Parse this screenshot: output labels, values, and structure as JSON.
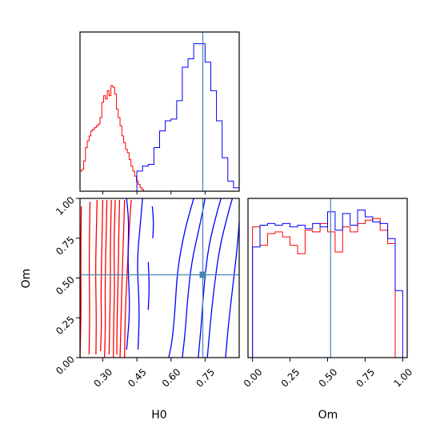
{
  "chart_data": {
    "type": "corner",
    "parameters": [
      "H0",
      "Om"
    ],
    "truth": {
      "H0": 0.74,
      "Om": 0.52
    },
    "colors": {
      "red": "#ff0000",
      "blue": "#0000ff",
      "truth": "#4682b4"
    },
    "xlabel_h0": "H0",
    "xlabel_om": "Om",
    "ylabel_om": "Om",
    "h0_range": [
      0.2,
      0.9
    ],
    "om_range": [
      0.0,
      1.0
    ],
    "h0_ticks": [
      {
        "v": 0.3,
        "label": "0.30"
      },
      {
        "v": 0.45,
        "label": "0.45"
      },
      {
        "v": 0.6,
        "label": "0.60"
      },
      {
        "v": 0.75,
        "label": "0.75"
      }
    ],
    "om_ticks": [
      {
        "v": 0.0,
        "label": "0.00"
      },
      {
        "v": 0.25,
        "label": "0.25"
      },
      {
        "v": 0.5,
        "label": "0.50"
      },
      {
        "v": 0.75,
        "label": "0.75"
      },
      {
        "v": 1.0,
        "label": "1.00"
      }
    ],
    "hist_h0_red": {
      "edges": [
        0.2,
        0.208,
        0.216,
        0.224,
        0.232,
        0.24,
        0.248,
        0.256,
        0.264,
        0.272,
        0.28,
        0.288,
        0.296,
        0.304,
        0.312,
        0.32,
        0.328,
        0.336,
        0.344,
        0.352,
        0.36,
        0.368,
        0.376,
        0.384,
        0.392,
        0.4,
        0.408,
        0.416,
        0.424,
        0.432,
        0.44,
        0.448,
        0.456,
        0.464,
        0.472,
        0.48,
        0.488
      ],
      "counts": [
        0.12,
        0.13,
        0.18,
        0.26,
        0.3,
        0.33,
        0.36,
        0.37,
        0.38,
        0.39,
        0.4,
        0.44,
        0.53,
        0.57,
        0.55,
        0.6,
        0.57,
        0.63,
        0.62,
        0.58,
        0.49,
        0.44,
        0.39,
        0.33,
        0.29,
        0.25,
        0.23,
        0.19,
        0.15,
        0.12,
        0.09,
        0.06,
        0.04,
        0.02,
        0.01,
        0.0
      ]
    },
    "hist_h0_blue": {
      "edges": [
        0.45,
        0.475,
        0.5,
        0.525,
        0.55,
        0.575,
        0.6,
        0.625,
        0.65,
        0.675,
        0.7,
        0.725,
        0.75,
        0.775,
        0.8,
        0.825,
        0.85,
        0.875,
        0.9
      ],
      "counts": [
        0.12,
        0.15,
        0.16,
        0.26,
        0.36,
        0.42,
        0.43,
        0.54,
        0.74,
        0.79,
        0.88,
        0.88,
        0.77,
        0.6,
        0.42,
        0.2,
        0.06,
        0.02
      ]
    },
    "hist_om_red": {
      "edges": [
        0.0,
        0.05,
        0.1,
        0.15,
        0.2,
        0.25,
        0.3,
        0.35,
        0.4,
        0.45,
        0.5,
        0.55,
        0.6,
        0.65,
        0.7,
        0.75,
        0.8,
        0.85,
        0.9,
        0.95,
        1.0
      ],
      "counts": [
        0.78,
        0.67,
        0.74,
        0.75,
        0.72,
        0.67,
        0.62,
        0.76,
        0.75,
        0.8,
        0.75,
        0.63,
        0.78,
        0.75,
        0.8,
        0.82,
        0.83,
        0.76,
        0.68,
        0.0
      ]
    },
    "hist_om_blue": {
      "edges": [
        0.0,
        0.05,
        0.1,
        0.15,
        0.2,
        0.25,
        0.3,
        0.35,
        0.4,
        0.45,
        0.5,
        0.55,
        0.6,
        0.65,
        0.7,
        0.75,
        0.8,
        0.85,
        0.9,
        0.95,
        1.0
      ],
      "counts": [
        0.66,
        0.79,
        0.8,
        0.79,
        0.8,
        0.78,
        0.79,
        0.77,
        0.8,
        0.78,
        0.87,
        0.76,
        0.86,
        0.79,
        0.88,
        0.84,
        0.81,
        0.8,
        0.71,
        0.4
      ]
    },
    "contours_red": [
      [
        [
          0.2,
          0.0
        ],
        [
          0.205,
          0.3
        ],
        [
          0.203,
          0.6
        ],
        [
          0.206,
          0.95
        ]
      ],
      [
        [
          0.24,
          0.02
        ],
        [
          0.243,
          0.3
        ],
        [
          0.24,
          0.6
        ],
        [
          0.244,
          0.98
        ]
      ],
      [
        [
          0.27,
          0.02
        ],
        [
          0.272,
          0.25
        ],
        [
          0.268,
          0.55
        ],
        [
          0.273,
          0.85
        ],
        [
          0.275,
          0.99
        ]
      ],
      [
        [
          0.29,
          0.04
        ],
        [
          0.295,
          0.2
        ],
        [
          0.292,
          0.4
        ],
        [
          0.297,
          0.75
        ],
        [
          0.3,
          0.99
        ]
      ],
      [
        [
          0.308,
          0.0
        ],
        [
          0.312,
          0.2
        ],
        [
          0.31,
          0.45
        ],
        [
          0.315,
          0.75
        ],
        [
          0.318,
          0.99
        ]
      ],
      [
        [
          0.328,
          0.02
        ],
        [
          0.33,
          0.2
        ],
        [
          0.334,
          0.45
        ],
        [
          0.333,
          0.7
        ],
        [
          0.338,
          0.99
        ]
      ],
      [
        [
          0.347,
          0.0
        ],
        [
          0.348,
          0.2
        ],
        [
          0.352,
          0.45
        ],
        [
          0.349,
          0.7
        ],
        [
          0.355,
          0.99
        ]
      ],
      [
        [
          0.362,
          0.02
        ],
        [
          0.363,
          0.25
        ],
        [
          0.368,
          0.5
        ],
        [
          0.37,
          0.75
        ],
        [
          0.374,
          0.99
        ]
      ],
      [
        [
          0.376,
          0.0
        ],
        [
          0.38,
          0.2
        ],
        [
          0.384,
          0.45
        ],
        [
          0.39,
          0.7
        ],
        [
          0.396,
          0.99
        ]
      ],
      [
        [
          0.396,
          0.0
        ],
        [
          0.398,
          0.25
        ],
        [
          0.408,
          0.55
        ],
        [
          0.418,
          0.85
        ],
        [
          0.425,
          0.99
        ]
      ]
    ],
    "contours_blue": [
      [
        [
          0.59,
          0.0
        ],
        [
          0.605,
          0.1
        ],
        [
          0.618,
          0.3
        ],
        [
          0.628,
          0.55
        ],
        [
          0.66,
          0.8
        ],
        [
          0.7,
          1.0
        ]
      ],
      [
        [
          0.65,
          0.0
        ],
        [
          0.662,
          0.15
        ],
        [
          0.672,
          0.35
        ],
        [
          0.69,
          0.6
        ],
        [
          0.73,
          0.85
        ],
        [
          0.75,
          1.0
        ]
      ],
      [
        [
          0.72,
          0.0
        ],
        [
          0.733,
          0.2
        ],
        [
          0.745,
          0.45
        ],
        [
          0.765,
          0.7
        ],
        [
          0.8,
          0.9
        ],
        [
          0.82,
          1.0
        ]
      ],
      [
        [
          0.76,
          0.0
        ],
        [
          0.772,
          0.2
        ],
        [
          0.79,
          0.45
        ],
        [
          0.815,
          0.7
        ],
        [
          0.85,
          0.9
        ],
        [
          0.87,
          1.0
        ]
      ],
      [
        [
          0.84,
          0.0
        ],
        [
          0.852,
          0.2
        ],
        [
          0.872,
          0.45
        ],
        [
          0.892,
          0.7
        ],
        [
          0.9,
          0.85
        ]
      ],
      [
        [
          0.405,
          0.05
        ],
        [
          0.42,
          0.3
        ],
        [
          0.41,
          0.6
        ],
        [
          0.415,
          0.85
        ],
        [
          0.405,
          1.0
        ]
      ],
      [
        [
          0.455,
          0.05
        ],
        [
          0.462,
          0.3
        ],
        [
          0.45,
          0.6
        ],
        [
          0.466,
          0.85
        ],
        [
          0.475,
          1.0
        ]
      ],
      [
        [
          0.5,
          0.3
        ],
        [
          0.505,
          0.45
        ],
        [
          0.5,
          0.6
        ]
      ],
      [
        [
          0.52,
          0.75
        ],
        [
          0.524,
          0.85
        ],
        [
          0.518,
          0.95
        ]
      ]
    ]
  }
}
